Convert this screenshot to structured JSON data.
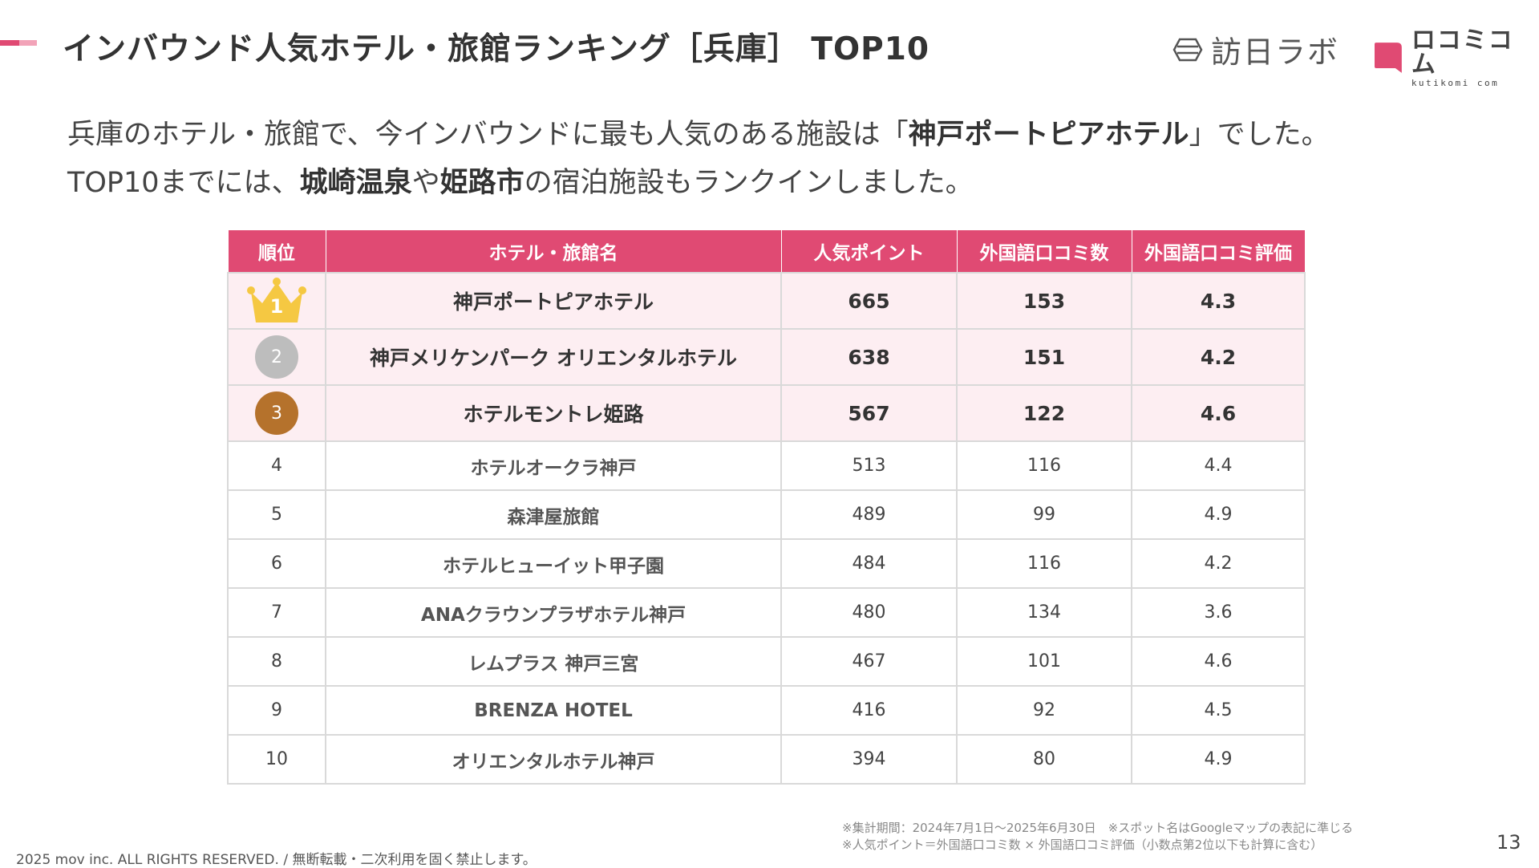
{
  "header": {
    "title": "インバウンド人気ホテル・旅館ランキング［兵庫］ TOP10",
    "logo_houjin": "訪日ラボ",
    "logo_kuchikomi": "ロコミコム",
    "logo_kuchikomi_sub": "kutikomi com"
  },
  "intro": {
    "line1_a": "兵庫のホテル・旅館で、今インバウンドに最も人気のある施設は「",
    "line1_bold": "神戸ポートピアホテル",
    "line1_b": "」でした。",
    "line2_a": "TOP10までには、",
    "line2_bold1": "城崎温泉",
    "line2_mid": "や",
    "line2_bold2": "姫路市",
    "line2_b": "の宿泊施設もランクインしました。"
  },
  "table": {
    "headers": {
      "rank": "順位",
      "name": "ホテル・旅館名",
      "points": "人気ポイント",
      "reviews": "外国語口コミ数",
      "rating": "外国語口コミ評価"
    },
    "rows": [
      {
        "rank": "1",
        "name": "神戸ポートピアホテル",
        "points": "665",
        "reviews": "153",
        "rating": "4.3"
      },
      {
        "rank": "2",
        "name": "神戸メリケンパーク オリエンタルホテル",
        "points": "638",
        "reviews": "151",
        "rating": "4.2"
      },
      {
        "rank": "3",
        "name": "ホテルモントレ姫路",
        "points": "567",
        "reviews": "122",
        "rating": "4.6"
      },
      {
        "rank": "4",
        "name": "ホテルオークラ神戸",
        "points": "513",
        "reviews": "116",
        "rating": "4.4"
      },
      {
        "rank": "5",
        "name": "森津屋旅館",
        "points": "489",
        "reviews": "99",
        "rating": "4.9"
      },
      {
        "rank": "6",
        "name": "ホテルヒューイット甲子園",
        "points": "484",
        "reviews": "116",
        "rating": "4.2"
      },
      {
        "rank": "7",
        "name": "ANAクラウンプラザホテル神戸",
        "points": "480",
        "reviews": "134",
        "rating": "3.6"
      },
      {
        "rank": "8",
        "name": "レムプラス 神戸三宮",
        "points": "467",
        "reviews": "101",
        "rating": "4.6"
      },
      {
        "rank": "9",
        "name": "BRENZA HOTEL",
        "points": "416",
        "reviews": "92",
        "rating": "4.5"
      },
      {
        "rank": "10",
        "name": "オリエンタルホテル神戸",
        "points": "394",
        "reviews": "80",
        "rating": "4.9"
      }
    ]
  },
  "footer": {
    "note1": "※集計期間：2024年7月1日〜2025年6月30日　※スポット名はGoogleマップの表記に準じる",
    "note2": "※人気ポイント＝外国語口コミ数 × 外国語口コミ評価（小数点第2位以下も計算に含む）",
    "page": "13",
    "copyright": "2025 mov inc. ALL RIGHTS RESERVED. / 無断転載・二次利用を固く禁止します。"
  },
  "colors": {
    "accent": "#e04a73",
    "accent_light": "#f2a3b8",
    "top_row_bg": "#fdeef2",
    "gold": "#f5c842",
    "silver": "#bdbdbd",
    "bronze": "#b5722c"
  },
  "icons": [
    "accent-bar",
    "houjin-labo-logo-icon",
    "kuchikomi-logo-icon",
    "crown-icon"
  ]
}
